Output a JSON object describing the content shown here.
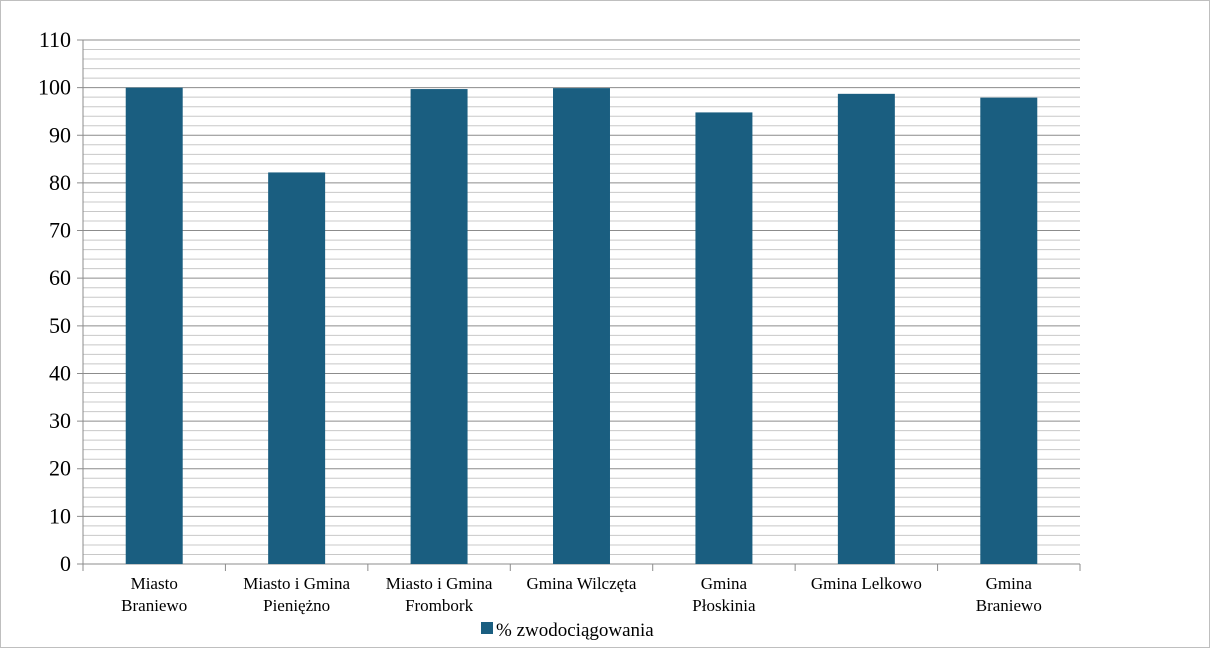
{
  "chart_data": {
    "type": "bar",
    "categories": [
      [
        "Miasto",
        "Braniewo"
      ],
      [
        "Miasto i Gmina",
        "Pieniężno"
      ],
      [
        "Miasto i Gmina",
        "Frombork"
      ],
      [
        "Gmina Wilczęta"
      ],
      [
        "Gmina",
        "Płoskinia"
      ],
      [
        "Gmina Lelkowo"
      ],
      [
        "Gmina",
        "Braniewo"
      ]
    ],
    "series": [
      {
        "name": "% zwodociągowania",
        "color": "#1a5e80",
        "values": [
          100,
          82.2,
          99.7,
          99.9,
          94.8,
          98.7,
          97.9
        ]
      }
    ],
    "title": "",
    "xlabel": "",
    "ylabel": "",
    "ylim": [
      0,
      110
    ],
    "yticks": [
      0,
      10,
      20,
      30,
      40,
      50,
      60,
      70,
      80,
      90,
      100,
      110
    ],
    "grid": true,
    "legend": "bottom"
  }
}
